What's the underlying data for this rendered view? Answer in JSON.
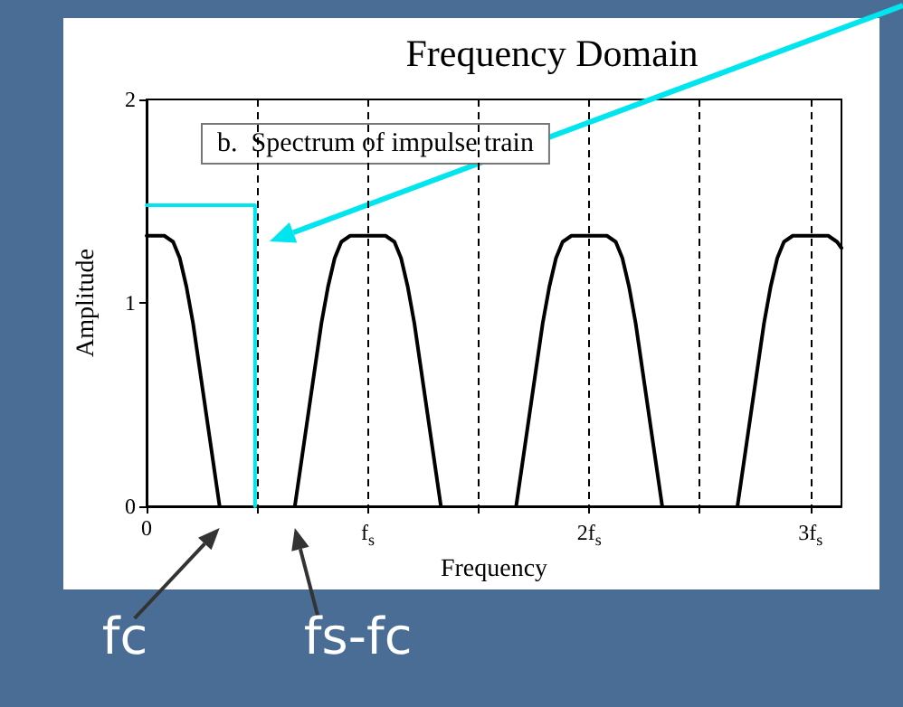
{
  "chart_data": {
    "type": "line",
    "title": "Frequency Domain",
    "xlabel": "Frequency",
    "ylabel": "Amplitude",
    "xlim": [
      0,
      3.14
    ],
    "xticks": [
      0,
      {
        "value": 0.5,
        "label": null
      },
      {
        "value": 1,
        "label": "f$_{s}$"
      },
      {
        "value": 1.5,
        "label": null
      },
      {
        "value": 2,
        "label": "2f$_{s}$"
      },
      {
        "value": 2.5,
        "label": null
      },
      {
        "value": 3,
        "label": "3f$_{s}$"
      }
    ],
    "ylim": [
      0,
      2
    ],
    "yticks": [
      0,
      1,
      2
    ],
    "grid": "x",
    "annotations": [
      "b.  Spectrum of impulse train",
      {
        "text": "fc",
        "x": 0.33,
        "y": 0
      },
      {
        "text": "fs-fc",
        "x": 0.67,
        "y": 0
      }
    ],
    "series": [
      {
        "color": "#000000",
        "x": [
          0,
          0.08,
          0.12,
          0.15,
          0.18,
          0.21,
          0.25,
          0.29,
          0.33,
          0.5,
          0.67,
          0.71,
          0.75,
          0.79,
          0.82,
          0.85,
          0.88,
          0.92,
          1,
          1.08,
          1.12,
          1.15,
          1.18,
          1.21,
          1.25,
          1.29,
          1.33,
          1.5,
          1.67,
          1.71,
          1.75,
          1.79,
          1.82,
          1.85,
          1.88,
          1.92,
          2,
          2.08,
          2.12,
          2.15,
          2.18,
          2.21,
          2.25,
          2.29,
          2.33,
          2.5,
          2.67,
          2.71,
          2.75,
          2.79,
          2.82,
          2.85,
          2.88,
          2.92,
          3,
          3.08,
          3.12,
          3.14
        ],
        "values": [
          1.33,
          1.33,
          1.3,
          1.22,
          1.08,
          0.9,
          0.6,
          0.3,
          0,
          null,
          0,
          0.3,
          0.6,
          0.9,
          1.08,
          1.22,
          1.3,
          1.33,
          1.33,
          1.33,
          1.3,
          1.22,
          1.08,
          0.9,
          0.6,
          0.3,
          0,
          null,
          0,
          0.3,
          0.6,
          0.9,
          1.08,
          1.22,
          1.3,
          1.33,
          1.33,
          1.33,
          1.3,
          1.22,
          1.08,
          0.9,
          0.6,
          0.3,
          0,
          null,
          0,
          0.3,
          0.6,
          0.9,
          1.08,
          1.22,
          1.3,
          1.33,
          1.33,
          1.33,
          1.3,
          1.27
        ]
      },
      {
        "color": "#00e5ee",
        "x": [
          0,
          0.49,
          0.49
        ],
        "values": [
          1.48,
          1.48,
          0
        ]
      }
    ]
  }
}
